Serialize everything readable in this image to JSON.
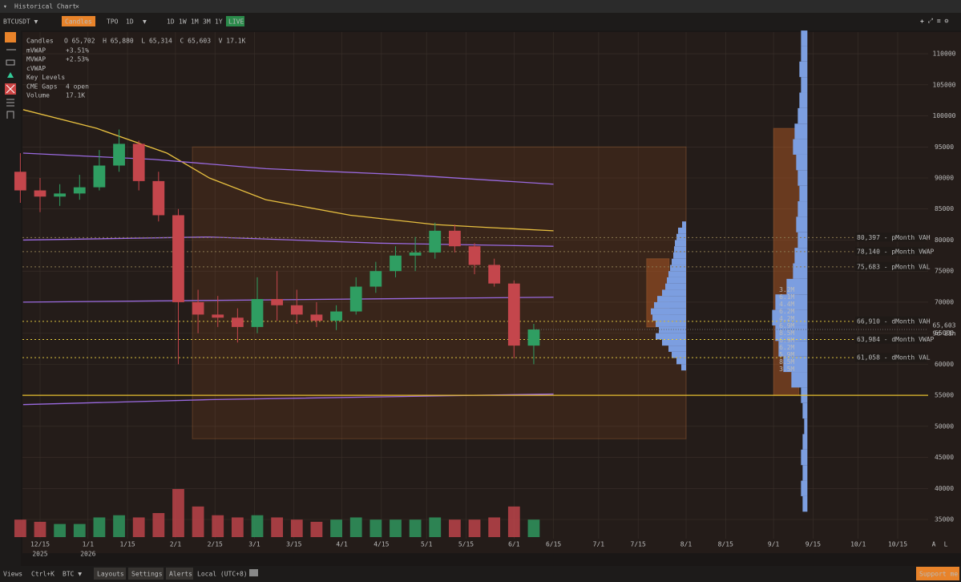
{
  "window": {
    "title": "Historical Chart"
  },
  "toolbar": {
    "symbol": "BTCUSDT ▼",
    "chart_mode": "Candles",
    "tpo": "TPO",
    "interval": "1D",
    "ranges": [
      "1D",
      "1W",
      "1M",
      "3M",
      "1Y"
    ],
    "live": "LIVE"
  },
  "legend": {
    "header": "Candles",
    "ohlcv": "O 65,702  H 65,880  L 65,314  C 65,603  V 17.1K",
    "rows": [
      {
        "name": "mVWAP",
        "value": "+3.51%",
        "color": "#6d6648"
      },
      {
        "name": "MVWAP",
        "value": "+2.53%",
        "color": "#e0b030"
      },
      {
        "name": "cVWAP",
        "color": "#cccccc"
      },
      {
        "name": "Key Levels",
        "color": "#66605a"
      },
      {
        "name": "CME Gaps",
        "value": "4 open",
        "color": "#66605a"
      },
      {
        "name": "Volume",
        "value": "17.1K",
        "color": "#cccccc"
      }
    ]
  },
  "chart_data": {
    "type": "candlestick",
    "xlim": [
      -6.25,
      314.8
    ],
    "ylim": [
      31900,
      113500
    ],
    "xticks": [
      {
        "value": 0,
        "label": "12/15"
      },
      {
        "value": 17,
        "label": "1/1"
      },
      {
        "value": 31,
        "label": "1/15"
      },
      {
        "value": 48,
        "label": "2/1"
      },
      {
        "value": 62,
        "label": "2/15"
      },
      {
        "value": 76,
        "label": "3/1"
      },
      {
        "value": 90,
        "label": "3/15"
      },
      {
        "value": 107,
        "label": "4/1"
      },
      {
        "value": 121,
        "label": "4/15"
      },
      {
        "value": 137,
        "label": "5/1"
      },
      {
        "value": 151,
        "label": "5/15"
      },
      {
        "value": 168,
        "label": "6/1"
      },
      {
        "value": 182,
        "label": "6/15"
      },
      {
        "value": 198,
        "label": "7/1"
      },
      {
        "value": 212,
        "label": "7/15"
      },
      {
        "value": 229,
        "label": "8/1"
      },
      {
        "value": 243,
        "label": "8/15"
      },
      {
        "value": 260,
        "label": "9/1"
      },
      {
        "value": 274,
        "label": "9/15"
      },
      {
        "value": 290,
        "label": "10/1"
      },
      {
        "value": 304,
        "label": "10/15"
      }
    ],
    "year_labels": [
      {
        "value": 0,
        "label": "2025"
      },
      {
        "value": 17,
        "label": "2026"
      }
    ],
    "yticks": [
      110000,
      105000,
      100000,
      95000,
      90000,
      85000,
      80000,
      75000,
      70000,
      65000,
      60000,
      55000,
      50000,
      45000,
      40000,
      35000
    ],
    "x": [
      -7,
      0,
      7,
      14,
      21,
      28,
      35,
      42,
      49,
      56,
      63,
      70,
      77,
      84,
      91,
      98,
      105,
      112,
      119,
      126,
      133,
      140,
      147,
      154,
      161,
      168,
      175
    ],
    "open": [
      91000,
      88000,
      87000,
      87500,
      88500,
      92000,
      95500,
      89500,
      84000,
      70000,
      68000,
      67500,
      66000,
      70500,
      69500,
      68000,
      67000,
      68500,
      72500,
      75000,
      77500,
      78000,
      81500,
      79000,
      76000,
      73000,
      63000
    ],
    "high": [
      94000,
      90000,
      89000,
      90500,
      94500,
      97800,
      96000,
      91000,
      85000,
      72000,
      71000,
      69000,
      74000,
      75000,
      72000,
      70000,
      69500,
      74000,
      76500,
      79000,
      80500,
      82800,
      82500,
      79500,
      77000,
      73500,
      66500
    ],
    "low": [
      86000,
      84500,
      85500,
      86500,
      88000,
      91000,
      88000,
      83000,
      60000,
      65000,
      66000,
      63500,
      65000,
      67000,
      66500,
      66000,
      65500,
      68000,
      71500,
      74000,
      75000,
      77000,
      78000,
      74500,
      72500,
      61000,
      60000
    ],
    "close": [
      88000,
      87000,
      87500,
      88500,
      92000,
      95500,
      89500,
      84000,
      70000,
      68000,
      67500,
      66000,
      70500,
      69500,
      68000,
      67000,
      68500,
      72500,
      75000,
      77500,
      78000,
      81500,
      79000,
      76000,
      73000,
      63000,
      65603
    ],
    "volume": [
      40,
      35,
      30,
      30,
      45,
      50,
      45,
      55,
      110,
      70,
      50,
      45,
      50,
      45,
      40,
      35,
      40,
      45,
      40,
      40,
      40,
      45,
      40,
      40,
      45,
      70,
      40
    ],
    "up_color": "#2f9e62",
    "down_color": "#c4464c",
    "lines": [
      {
        "color": "#e8c040",
        "x": [
          -6,
          20,
          45,
          60,
          80,
          110,
          140,
          160,
          182
        ],
        "values": [
          101000,
          98000,
          94000,
          90000,
          86500,
          84000,
          82500,
          82000,
          81500
        ]
      },
      {
        "color": "#9a6ae0",
        "x": [
          -6,
          40,
          80,
          130,
          182
        ],
        "values": [
          94000,
          93000,
          91500,
          90500,
          89000
        ]
      },
      {
        "color": "#9a6ae0",
        "x": [
          -6,
          60,
          120,
          182
        ],
        "values": [
          80000,
          80500,
          79500,
          79000
        ]
      },
      {
        "color": "#9a6ae0",
        "x": [
          -6,
          182
        ],
        "values": [
          70000,
          70800
        ]
      },
      {
        "color": "#9a6ae0",
        "x": [
          -6,
          60,
          182
        ],
        "values": [
          53500,
          54300,
          55200
        ]
      }
    ],
    "hlines": [
      {
        "value": 55000,
        "color": "#e8c030"
      }
    ],
    "zones": [
      {
        "x": [
          54,
          229
        ],
        "y": [
          48000,
          95000
        ],
        "color": "rgba(170,90,40,0.16)"
      },
      {
        "x": [
          215,
          223
        ],
        "y": [
          66000,
          77000
        ],
        "color": "rgba(190,95,40,0.45)"
      },
      {
        "x": [
          260,
          269
        ],
        "y": [
          55000,
          98000
        ],
        "color": "rgba(190,95,40,0.45)"
      }
    ],
    "levels": [
      {
        "value": 80397,
        "label": "80,397 - pMonth VAH",
        "color": "#8a7a50"
      },
      {
        "value": 78140,
        "label": "78,140 - pMonth VWAP",
        "color": "#8a7a50"
      },
      {
        "value": 75683,
        "label": "75,683 - pMonth VAL",
        "color": "#8a7a50"
      },
      {
        "value": 66910,
        "label": "66,910 - dMonth VAH",
        "color": "#d8c040"
      },
      {
        "value": 63984,
        "label": "63,984 - dMonth VWAP",
        "color": "#e8d040"
      },
      {
        "value": 61058,
        "label": "61,058 - dMonth VAL",
        "color": "#d8c040"
      }
    ],
    "profiles": [
      {
        "anchor": 229,
        "color": "#7c9ee0",
        "step": 1000,
        "prices": [
          82500,
          81500,
          80500,
          79500,
          78500,
          77500,
          76500,
          75500,
          74500,
          73500,
          72500,
          71500,
          70500,
          69500,
          68500,
          67500,
          66500,
          65500,
          64500,
          63500,
          62500,
          61500,
          60500,
          59500
        ],
        "values": [
          5,
          10,
          12,
          14,
          15,
          16,
          18,
          20,
          22,
          24,
          26,
          30,
          36,
          40,
          44,
          42,
          38,
          34,
          38,
          30,
          22,
          18,
          12,
          6
        ]
      },
      {
        "anchor": 272,
        "color": "#7c9ee0",
        "step": 2500,
        "prices": [
          112500,
          110000,
          107500,
          105000,
          102500,
          100000,
          97500,
          95000,
          92500,
          90000,
          87500,
          85000,
          82500,
          80000,
          77500,
          75000,
          72500,
          70000,
          67500,
          65000,
          62500,
          60000,
          57500,
          55000,
          52500,
          50000,
          47500,
          45000,
          42500,
          40000,
          37500
        ],
        "values": [
          8,
          8,
          10,
          8,
          10,
          12,
          16,
          18,
          14,
          12,
          10,
          12,
          14,
          12,
          16,
          18,
          26,
          40,
          44,
          40,
          36,
          30,
          20,
          8,
          6,
          4,
          6,
          8,
          6,
          8,
          6
        ],
        "labels": [
          "3.2M",
          "6.1M",
          "4.4M",
          "6.2M",
          "4.2M",
          "6.9M",
          "8.5M",
          "6.9M",
          "6.2M",
          "5.9M",
          "8.5M",
          "3.5M"
        ]
      }
    ],
    "last_price": {
      "value": 65603,
      "label": "65,603",
      "countdown": "9d 21h"
    },
    "corner": [
      "A",
      "L"
    ]
  },
  "footer": {
    "views": "Views",
    "shortcut": "Ctrl+K",
    "asset": "BTC ▼",
    "layouts": "Layouts",
    "settings": "Settings",
    "alerts": "Alerts",
    "timezone": "Local (UTC+8)",
    "support": "Support me"
  }
}
